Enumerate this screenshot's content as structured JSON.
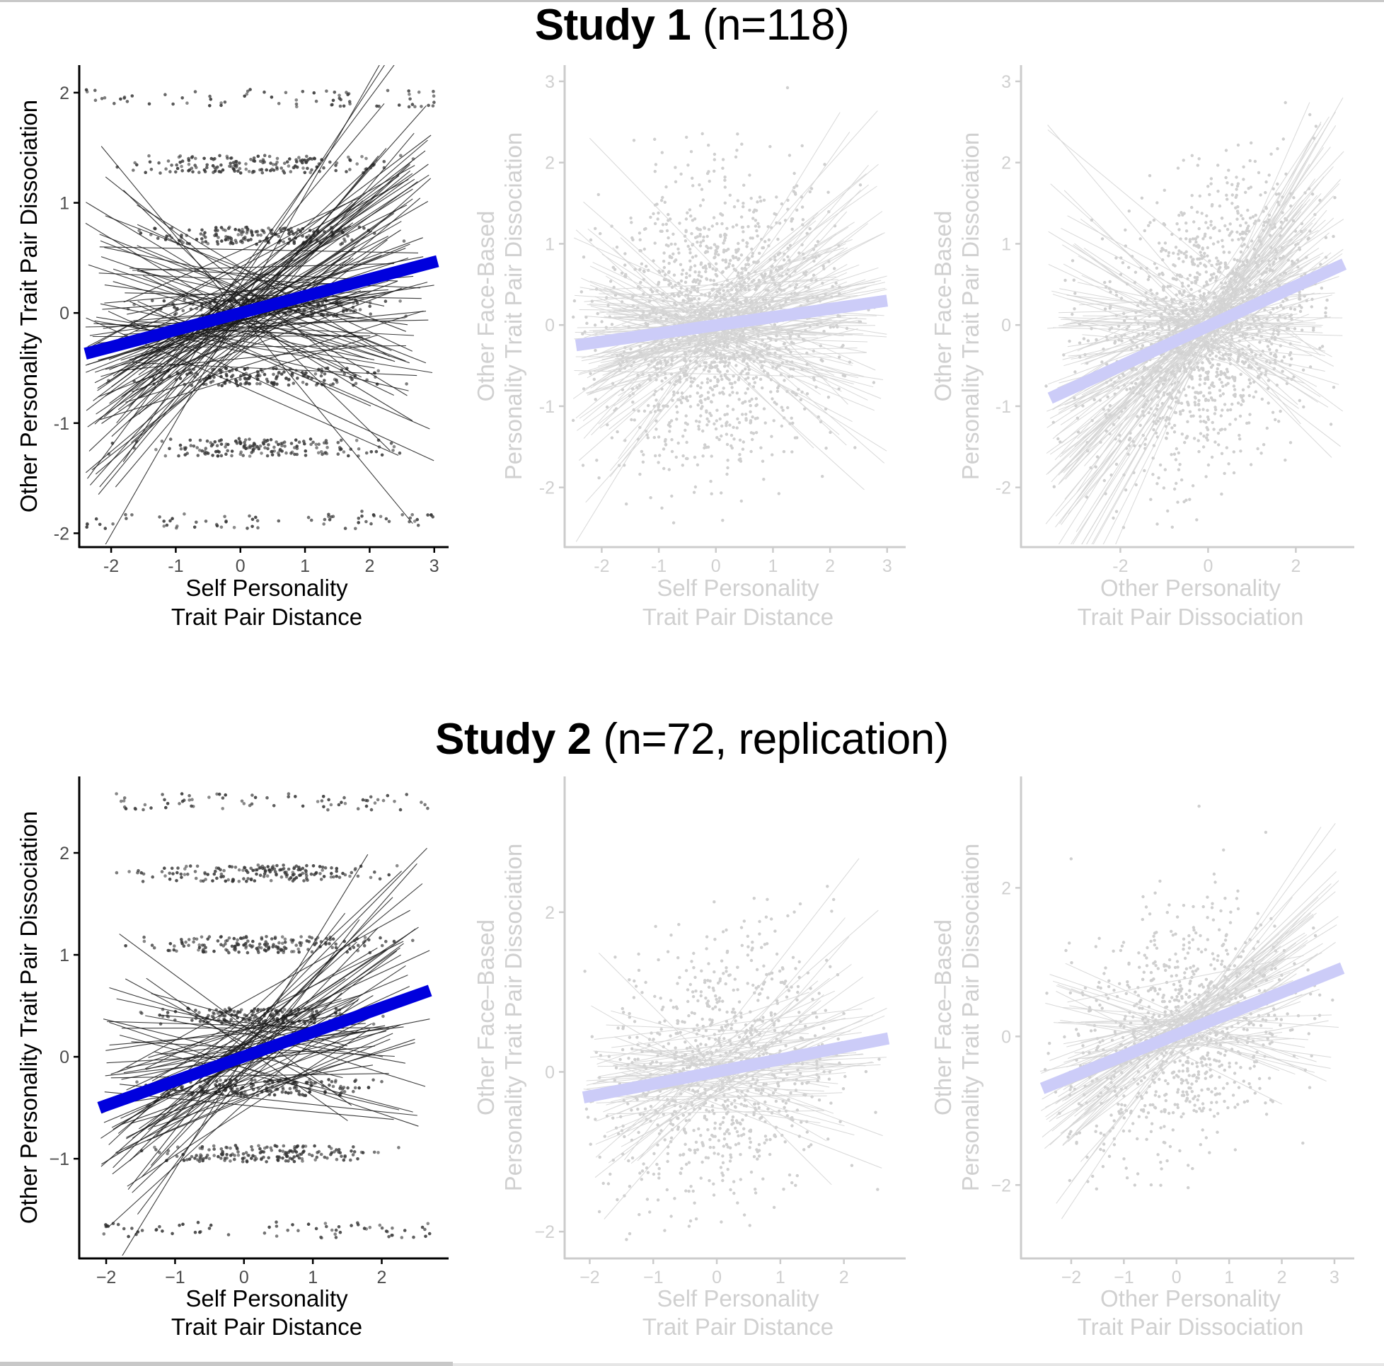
{
  "studies": [
    {
      "title_bold": "Study 1",
      "title_rest": " (n=118)"
    },
    {
      "title_bold": "Study 2",
      "title_rest": " (n=72, replication)"
    }
  ],
  "colors": {
    "highlight_axis": "#000000",
    "highlight_points": "#333333",
    "highlight_lines": "#1a1a1a",
    "highlight_fit": "#0000dd",
    "muted_axis": "#cccccc",
    "muted_text": "#d0d0d0",
    "muted_points": "#cfcfcf",
    "muted_lines": "#d4d4d4",
    "muted_fit": "#ccccf8"
  },
  "chart_data": [
    {
      "type": "scatter",
      "study": "Study 1 (n=118)",
      "panel": 1,
      "emphasis": "highlighted",
      "xlabel": [
        "Self Personality",
        "Trait Pair Distance"
      ],
      "ylabel": [
        "Other Personality Trait Pair Dissociation"
      ],
      "xlim": [
        -2.45,
        3.2
      ],
      "ylim": [
        -2.1,
        2.25
      ],
      "xticks": [
        -2,
        -1,
        0,
        1,
        2,
        3
      ],
      "yticks": [
        -2,
        -1,
        0,
        1,
        2
      ],
      "point_y_levels": [
        -1.88,
        -1.22,
        -0.58,
        0.05,
        0.7,
        1.35,
        1.95
      ],
      "point_x_range": [
        -2.4,
        3.0
      ],
      "n_subject_lines": 118,
      "fit_line": {
        "x": [
          -2.4,
          3.05
        ],
        "y": [
          -0.37,
          0.47
        ]
      },
      "grid": false
    },
    {
      "type": "scatter",
      "study": "Study 1 (n=118)",
      "panel": 2,
      "emphasis": "muted",
      "xlabel": [
        "Self Personality",
        "Trait Pair Distance"
      ],
      "ylabel": [
        "Other Face-Based",
        "Personality Trait Pair Dissociation"
      ],
      "xlim": [
        -2.6,
        3.3
      ],
      "ylim": [
        -2.7,
        3.2
      ],
      "xticks": [
        -2,
        -1,
        0,
        1,
        2,
        3
      ],
      "yticks": [
        -2,
        -1,
        0,
        1,
        2,
        3
      ],
      "point_x_range": [
        -2.5,
        3.0
      ],
      "point_y_range": [
        -2.5,
        3.0
      ],
      "n_subject_lines": 118,
      "fit_line": {
        "x": [
          -2.45,
          3.0
        ],
        "y": [
          -0.25,
          0.3
        ]
      },
      "grid": false
    },
    {
      "type": "scatter",
      "study": "Study 1 (n=118)",
      "panel": 3,
      "emphasis": "muted",
      "xlabel": [
        "Other Personality",
        "Trait Pair Dissociation"
      ],
      "ylabel": [
        "Other Face-Based",
        "Personality Trait Pair Dissociation"
      ],
      "xlim": [
        -4.2,
        3.3
      ],
      "ylim": [
        -2.7,
        3.2
      ],
      "xticks": [
        -2,
        0,
        2
      ],
      "yticks": [
        -2,
        -1,
        0,
        1,
        2,
        3
      ],
      "point_x_range": [
        -3.7,
        3.1
      ],
      "point_y_range": [
        -2.5,
        3.0
      ],
      "n_subject_lines": 118,
      "fit_line": {
        "x": [
          -3.6,
          3.1
        ],
        "y": [
          -0.9,
          0.75
        ]
      },
      "grid": false
    },
    {
      "type": "scatter",
      "study": "Study 2 (n=72, replication)",
      "panel": 1,
      "emphasis": "highlighted",
      "xlabel": [
        "Self Personality",
        "Trait Pair Distance"
      ],
      "ylabel": [
        "Other Personality Trait Pair Dissociation"
      ],
      "xlim": [
        -2.35,
        2.95
      ],
      "ylim": [
        -1.95,
        2.75
      ],
      "xticks": [
        -2,
        -1,
        0,
        1,
        2
      ],
      "yticks": [
        -1,
        0,
        1,
        2
      ],
      "point_y_levels": [
        -1.7,
        -0.95,
        -0.3,
        0.4,
        1.1,
        1.8,
        2.5
      ],
      "point_x_range": [
        -2.1,
        2.7
      ],
      "n_subject_lines": 72,
      "fit_line": {
        "x": [
          -2.1,
          2.7
        ],
        "y": [
          -0.5,
          0.65
        ]
      },
      "grid": false
    },
    {
      "type": "scatter",
      "study": "Study 2 (n=72, replication)",
      "panel": 2,
      "emphasis": "muted",
      "xlabel": [
        "Self Personality",
        "Trait Pair Distance"
      ],
      "ylabel": [
        "Other Face–Based",
        "Personality Trait Pair Dissociation"
      ],
      "xlim": [
        -2.35,
        2.95
      ],
      "ylim": [
        -2.3,
        3.7
      ],
      "xticks": [
        -2,
        -1,
        0,
        1,
        2
      ],
      "yticks": [
        -2,
        0,
        2
      ],
      "point_x_range": [
        -2.1,
        2.7
      ],
      "point_y_range": [
        -2.1,
        3.5
      ],
      "n_subject_lines": 72,
      "fit_line": {
        "x": [
          -2.1,
          2.7
        ],
        "y": [
          -0.32,
          0.42
        ]
      },
      "grid": false
    },
    {
      "type": "scatter",
      "study": "Study 2 (n=72, replication)",
      "panel": 3,
      "emphasis": "muted",
      "xlabel": [
        "Other Personality",
        "Trait Pair Dissociation"
      ],
      "ylabel": [
        "Other Face–Based",
        "Personality Trait Pair Dissociation"
      ],
      "xlim": [
        -2.9,
        3.35
      ],
      "ylim": [
        -2.95,
        3.5
      ],
      "xticks": [
        -2,
        -1,
        0,
        1,
        2,
        3
      ],
      "yticks": [
        -2,
        0,
        2
      ],
      "point_x_range": [
        -2.6,
        3.1
      ],
      "point_y_range": [
        -2.1,
        3.3
      ],
      "n_subject_lines": 72,
      "fit_line": {
        "x": [
          -2.55,
          3.15
        ],
        "y": [
          -0.7,
          0.92
        ]
      },
      "grid": false
    }
  ]
}
